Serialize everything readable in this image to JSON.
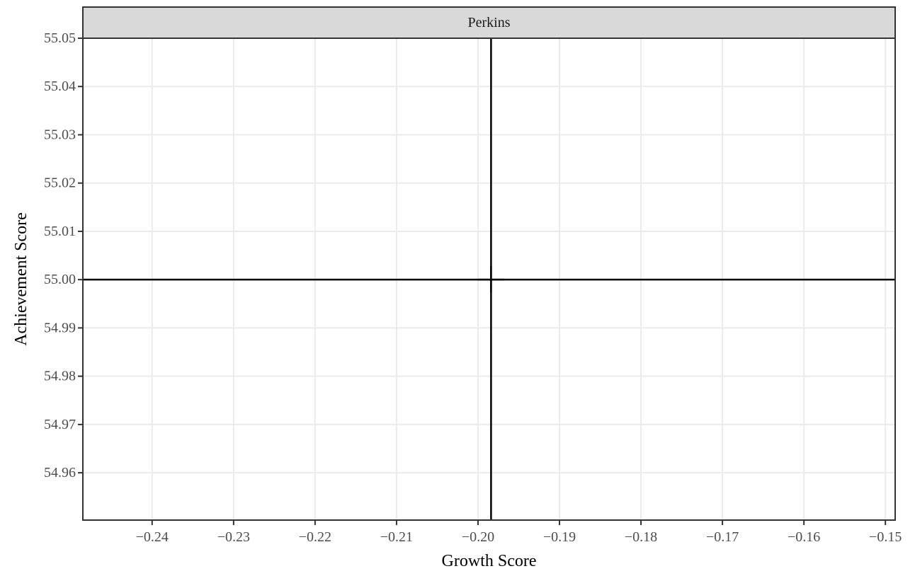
{
  "chart_data": {
    "type": "scatter",
    "facet_label": "Perkins",
    "xlabel": "Growth Score",
    "ylabel": "Achievement Score",
    "xlim": [
      -0.2485,
      -0.1488
    ],
    "ylim": [
      54.9502,
      55.05
    ],
    "x_ticks": [
      -0.24,
      -0.23,
      -0.22,
      -0.21,
      -0.2,
      -0.19,
      -0.18,
      -0.17,
      -0.16,
      -0.15
    ],
    "x_tick_labels": [
      "−0.24",
      "−0.23",
      "−0.22",
      "−0.21",
      "−0.20",
      "−0.19",
      "−0.18",
      "−0.17",
      "−0.16",
      "−0.15"
    ],
    "y_ticks": [
      54.96,
      54.97,
      54.98,
      54.99,
      55.0,
      55.01,
      55.02,
      55.03,
      55.04,
      55.05
    ],
    "y_tick_labels": [
      "54.96",
      "54.97",
      "54.98",
      "54.99",
      "55.00",
      "55.01",
      "55.02",
      "55.03",
      "55.04",
      "55.05"
    ],
    "reference_lines": {
      "vertical_x": -0.1984,
      "horizontal_y": 55.0
    },
    "points": [
      {
        "x": -0.1984,
        "y": 55.0,
        "shape": "plus"
      }
    ],
    "grid": true,
    "colors": {
      "panel_border": "#333333",
      "grid": "#ebebeb",
      "strip_fill": "#d9d9d9",
      "line": "#000000"
    }
  }
}
